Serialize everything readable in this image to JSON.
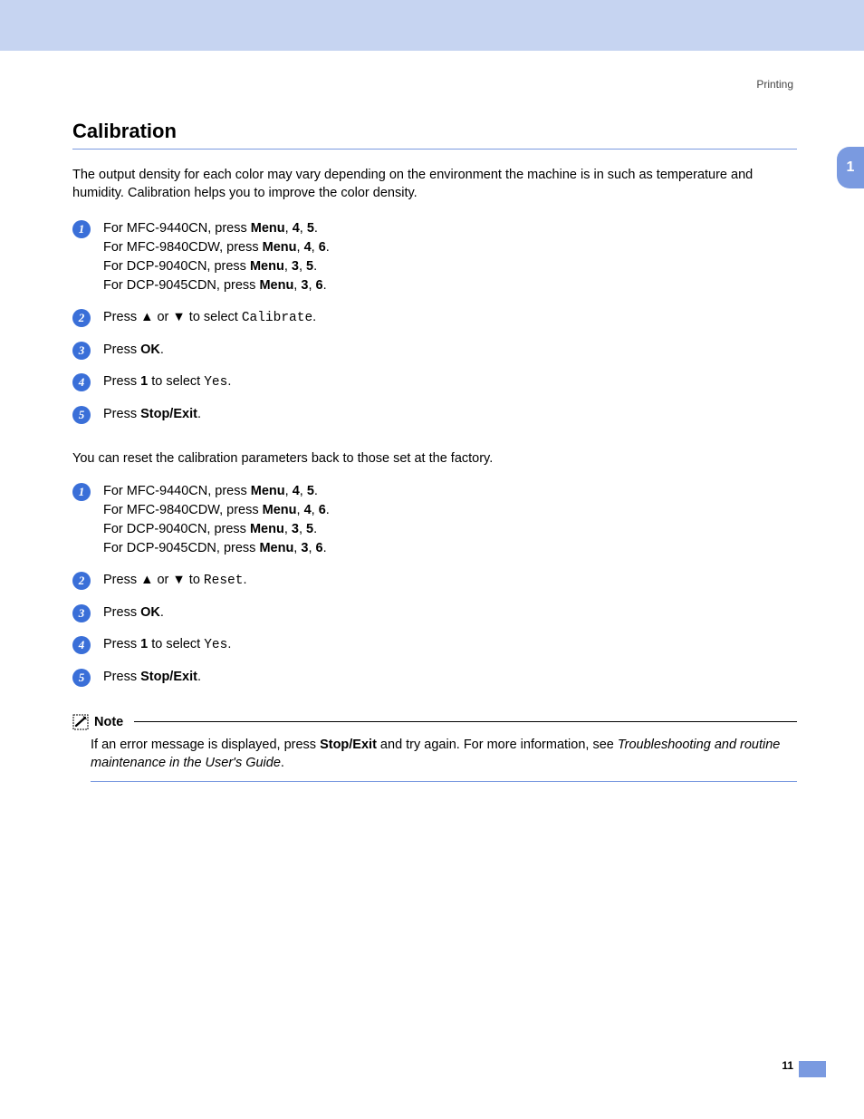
{
  "colors": {
    "band": "#c6d4f1",
    "accent": "#7a9ae0",
    "bullet": "#3a6fd8",
    "text": "#000000",
    "bg": "#ffffff"
  },
  "header": {
    "right_label": "Printing"
  },
  "side_tab": {
    "label": "1"
  },
  "section": {
    "title": "Calibration"
  },
  "intro": "<span>The output density for each color may vary depending on the environment the machine is in such as temperature and humidity. Calibration helps you to improve the color density.</span>",
  "steps_a": [
    {
      "n": "1",
      "html": "For MFC-9440CN, press <b>Menu</b>, <b>4</b>, <b>5</b>.<br>For MFC-9840CDW, press <b>Menu</b>, <b>4</b>, <b>6</b>.<br>For DCP-9040CN, press <b>Menu</b>, <b>3</b>, <b>5</b>.<br>For DCP-9045CDN, press <b>Menu</b>, <b>3</b>, <b>6</b>."
    },
    {
      "n": "2",
      "html": "Press <b>▲</b> or <b>▼</b> to select <span class=\"mono\">Calibrate</span>."
    },
    {
      "n": "3",
      "html": "Press <b>OK</b>."
    },
    {
      "n": "4",
      "html": "Press <b>1</b> to select <span class=\"mono\">Yes</span>."
    },
    {
      "n": "5",
      "html": "Press <b>Stop/Exit</b>."
    }
  ],
  "reset_intro": "You can reset the calibration parameters back to those set at the factory.",
  "steps_b": [
    {
      "n": "1",
      "html": "For MFC-9440CN, press <b>Menu</b>, <b>4</b>, <b>5</b>.<br>For MFC-9840CDW, press <b>Menu</b>, <b>4</b>, <b>6</b>.<br>For DCP-9040CN, press <b>Menu</b>, <b>3</b>, <b>5</b>.<br>For DCP-9045CDN, press <b>Menu</b>, <b>3</b>, <b>6</b>."
    },
    {
      "n": "2",
      "html": "Press <b>▲</b> or <b>▼</b> to <span class=\"mono\">Reset</span>."
    },
    {
      "n": "3",
      "html": "Press <b>OK</b>."
    },
    {
      "n": "4",
      "html": "Press <b>1</b> to select <span class=\"mono\">Yes</span>."
    },
    {
      "n": "5",
      "html": "Press <b>Stop/Exit</b>."
    }
  ],
  "note": {
    "label": "Note",
    "body_html": "If an error message is displayed, press <b>Stop/Exit</b> and try again. For more information, see <i>Troubleshooting and routine maintenance in the User's Guide</i>."
  },
  "page_number": "11"
}
